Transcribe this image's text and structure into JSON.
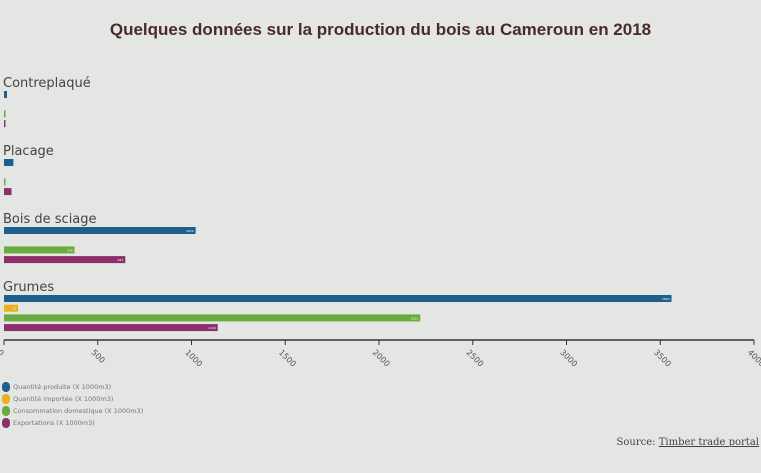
{
  "chart_data": {
    "type": "bar",
    "orientation": "horizontal",
    "title": "Quelques données sur la production du bois au Cameroun en 2018",
    "categories": [
      "Contreplaqué",
      "Placage",
      "Bois de sciage",
      "Grumes"
    ],
    "series": [
      {
        "name": "Quantité produite (X 1000m3)",
        "color": "#1f5f8b",
        "values": [
          16,
          50,
          1022,
          3560
        ]
      },
      {
        "name": "Quantité importée (X 1000m3)",
        "color": "#e8b11c",
        "values": [
          0,
          0,
          0,
          75
        ]
      },
      {
        "name": "Consommation domestique (X 1000m3)",
        "color": "#6aaa3f",
        "values": [
          5,
          5,
          376,
          2220
        ]
      },
      {
        "name": "Exportations (X 1000m3)",
        "color": "#8c2f6a",
        "values": [
          3,
          40,
          647,
          1140
        ]
      }
    ],
    "xlim": [
      0,
      4000
    ],
    "xticks": [
      0,
      500,
      1000,
      1500,
      2000,
      2500,
      3000,
      3500,
      4000
    ],
    "grid": false,
    "legend": "bottom-left"
  },
  "source": {
    "label": "Source:",
    "link": "Timber trade portal"
  }
}
